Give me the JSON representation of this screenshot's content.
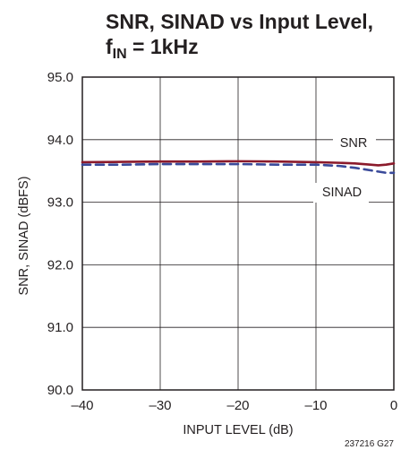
{
  "title_line1": "SNR, SINAD vs Input Level,",
  "title_line2_main": "f",
  "title_line2_sub": "IN",
  "title_line2_rest": " = 1kHz",
  "figure_code": "237216 G27",
  "colors": {
    "snr": "#8b1a2b",
    "sinad": "#3a4a9a",
    "grid": "#231f20",
    "text": "#231f20"
  },
  "chart_data": {
    "type": "line",
    "title": "SNR, SINAD vs Input Level, fIN = 1kHz",
    "xlabel": "INPUT LEVEL (dB)",
    "ylabel": "SNR, SINAD (dBFS)",
    "xlim": [
      -40,
      0
    ],
    "ylim": [
      90.0,
      95.0
    ],
    "xticks": [
      "–40",
      "–30",
      "–20",
      "–10",
      "0"
    ],
    "yticks": [
      "90.0",
      "91.0",
      "92.0",
      "93.0",
      "94.0",
      "95.0"
    ],
    "grid": true,
    "series": [
      {
        "name": "SNR",
        "style": "solid",
        "x": [
          -40,
          -35,
          -30,
          -25,
          -20,
          -15,
          -10,
          -7,
          -5,
          -3,
          -2,
          -1,
          0
        ],
        "y": [
          93.64,
          93.645,
          93.65,
          93.65,
          93.655,
          93.65,
          93.64,
          93.63,
          93.62,
          93.6,
          93.59,
          93.6,
          93.62
        ]
      },
      {
        "name": "SINAD",
        "style": "dashed",
        "x": [
          -40,
          -35,
          -30,
          -25,
          -20,
          -15,
          -10,
          -7,
          -5,
          -3,
          -2,
          -1,
          0
        ],
        "y": [
          93.6,
          93.6,
          93.61,
          93.61,
          93.61,
          93.6,
          93.6,
          93.58,
          93.55,
          93.51,
          93.49,
          93.47,
          93.47
        ]
      }
    ]
  }
}
